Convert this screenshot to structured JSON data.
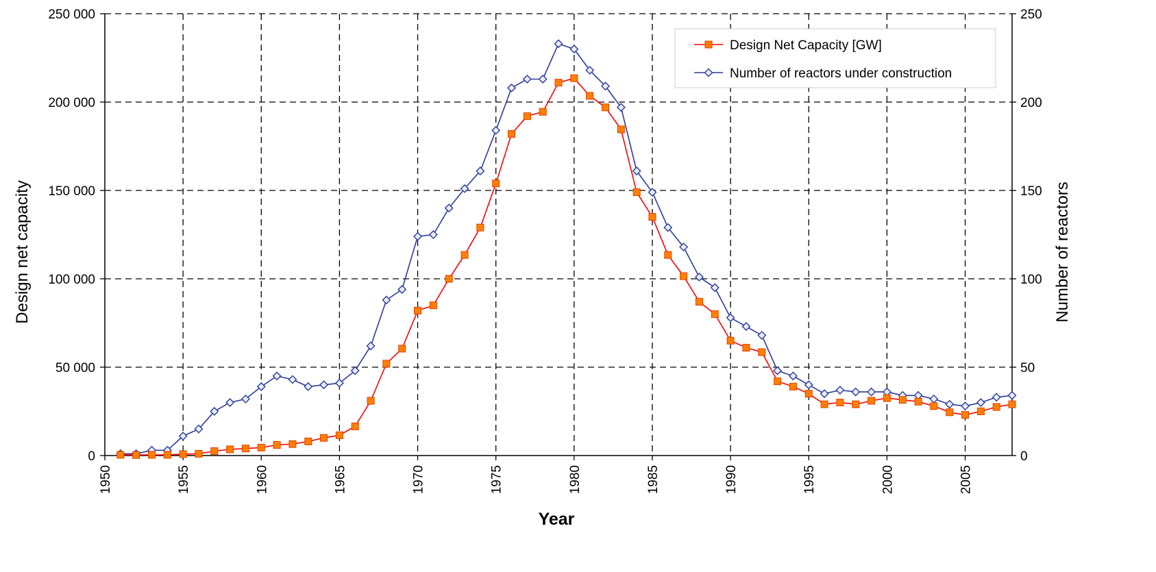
{
  "chart_data": {
    "type": "line",
    "xlabel": "Year",
    "ylabel": "Design net capacity",
    "y2label": "Number of reactors",
    "xlim": [
      1950,
      2008
    ],
    "ylim": [
      0,
      250000
    ],
    "y2lim": [
      0,
      250
    ],
    "xticks": [
      "1950",
      "1955",
      "1960",
      "1965",
      "1970",
      "1975",
      "1980",
      "1985",
      "1990",
      "1995",
      "2000",
      "2005"
    ],
    "yticks": [
      "0",
      "50 000",
      "100 000",
      "150 000",
      "200 000",
      "250 000"
    ],
    "y2ticks": [
      "0",
      "50",
      "100",
      "150",
      "200",
      "250"
    ],
    "grid": true,
    "legend_position": "top-right",
    "x": [
      1951,
      1952,
      1953,
      1954,
      1955,
      1956,
      1957,
      1958,
      1959,
      1960,
      1961,
      1962,
      1963,
      1964,
      1965,
      1966,
      1967,
      1968,
      1969,
      1970,
      1971,
      1972,
      1973,
      1974,
      1975,
      1976,
      1977,
      1978,
      1979,
      1980,
      1981,
      1982,
      1983,
      1984,
      1985,
      1986,
      1987,
      1988,
      1989,
      1990,
      1991,
      1992,
      1993,
      1994,
      1995,
      1996,
      1997,
      1998,
      1999,
      2000,
      2001,
      2002,
      2003,
      2004,
      2005,
      2006,
      2007,
      2008
    ],
    "series": [
      {
        "name": "Design Net Capacity [GW]",
        "axis": "left",
        "color": "#ff0000",
        "marker_color": "#ff8000",
        "marker": "square",
        "values": [
          400,
          300,
          400,
          400,
          800,
          1000,
          2500,
          3500,
          4000,
          4500,
          6000,
          6500,
          8000,
          10000,
          11500,
          16500,
          31000,
          52000,
          60500,
          82000,
          85000,
          100000,
          113500,
          129000,
          154000,
          182000,
          192000,
          194500,
          211000,
          213500,
          203500,
          197000,
          184500,
          149000,
          135000,
          113500,
          101500,
          87000,
          80000,
          65000,
          61000,
          58500,
          42000,
          39000,
          35000,
          29000,
          30000,
          29000,
          31000,
          32500,
          31500,
          30500,
          28000,
          24500,
          23000,
          25000,
          27500,
          29000
        ]
      },
      {
        "name": "Number of reactors under construction",
        "axis": "right",
        "color": "#2b3a9a",
        "marker_color": "#e6edf8",
        "marker": "diamond",
        "values": [
          1,
          1,
          3,
          3,
          11,
          15,
          25,
          30,
          32,
          39,
          45,
          43,
          39,
          40,
          41,
          48,
          62,
          88,
          94,
          124,
          125,
          140,
          151,
          161,
          184,
          208,
          213,
          213,
          233,
          230,
          218,
          209,
          197,
          161,
          149,
          129,
          118,
          101,
          95,
          78,
          73,
          68,
          48,
          45,
          40,
          35,
          37,
          36,
          36,
          36,
          34,
          34,
          32,
          29,
          28,
          30,
          33,
          34
        ]
      }
    ]
  }
}
